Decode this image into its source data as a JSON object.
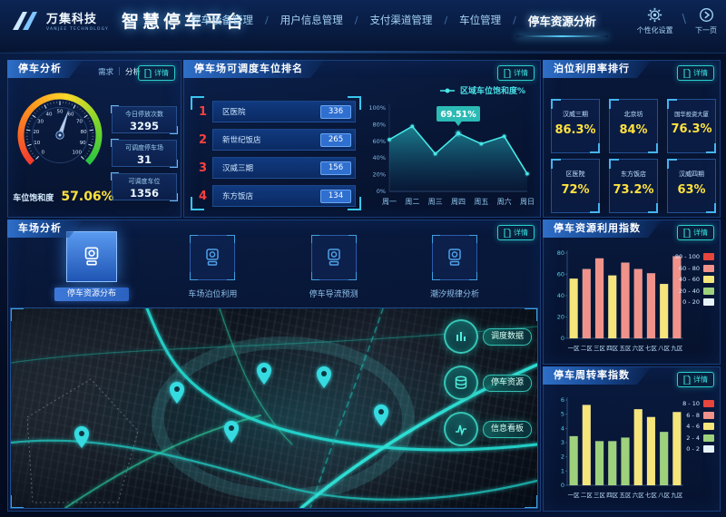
{
  "header": {
    "logo_title": "万集科技",
    "logo_subtitle": "VANJEE TECHNOLOGY",
    "app_title": "智慧停车平台",
    "nav_items": [
      {
        "label": "停车设备管理"
      },
      {
        "label": "用户信息管理"
      },
      {
        "label": "支付渠道管理"
      },
      {
        "label": "车位管理"
      },
      {
        "label": "停车资源分析"
      }
    ],
    "actions": {
      "settings_label": "个性化设置",
      "next_label": "下一页"
    }
  },
  "separators": {
    "nav": "/",
    "actions": "\\",
    "toggle": "|"
  },
  "detail_button_label": "详情",
  "parking_analysis": {
    "title": "停车分析",
    "toggle": {
      "left": "需求",
      "right": "分析"
    },
    "gauge": {
      "min": 0,
      "max": 100,
      "value": 57.06,
      "caption": "车位饱和度",
      "value_text": "57.06%"
    },
    "stats": [
      {
        "label": "今日停放次数",
        "value": "3295"
      },
      {
        "label": "可调度停车场",
        "value": "31"
      },
      {
        "label": "可调度车位",
        "value": "1356"
      }
    ]
  },
  "dispatch_ranking": {
    "title": "停车场可调度车位排名",
    "items": [
      {
        "rank": "1",
        "name": "区医院",
        "value": "336"
      },
      {
        "rank": "2",
        "name": "新世纪饭店",
        "value": "265"
      },
      {
        "rank": "3",
        "name": "汉威三期",
        "value": "156"
      },
      {
        "rank": "4",
        "name": "东方饭店",
        "value": "134"
      }
    ]
  },
  "berth_ranking": {
    "title": "泊位利用率排行",
    "cards": [
      {
        "name": "汉威三期",
        "value": "86.3%"
      },
      {
        "name": "北京坊",
        "value": "84%"
      },
      {
        "name": "国华投资大厦",
        "value": "76.3%"
      },
      {
        "name": "区医院",
        "value": "72%"
      },
      {
        "name": "东方饭店",
        "value": "73.2%"
      },
      {
        "name": "汉威四期",
        "value": "63%"
      }
    ]
  },
  "lot_analysis": {
    "title": "车场分析",
    "tabs": [
      {
        "label": "停车资源分布",
        "active": true
      },
      {
        "label": "车场泊位利用",
        "active": false
      },
      {
        "label": "停车导流预测",
        "active": false
      },
      {
        "label": "潮汐规律分析",
        "active": false
      }
    ],
    "map_buttons": [
      {
        "label": "调度数据",
        "icon": "bar-chart-icon"
      },
      {
        "label": "停车资源",
        "icon": "database-icon"
      },
      {
        "label": "信息看板",
        "icon": "pulse-chart-icon"
      }
    ]
  },
  "chart_data": [
    {
      "id": "region_saturation",
      "type": "area",
      "legend_label": "区域车位饱和度%",
      "x": [
        "周一",
        "周二",
        "周三",
        "周四",
        "周五",
        "周六",
        "周日"
      ],
      "values": [
        62,
        78,
        45,
        69.51,
        57,
        66,
        21
      ],
      "ylim": [
        0,
        100
      ],
      "yticks": [
        "0%",
        "20%",
        "40%",
        "60%",
        "80%",
        "100%"
      ],
      "highlight_index": 3,
      "highlight_label": "69.51%",
      "line_color": "#46e8e8",
      "legend_position": "top-right"
    },
    {
      "id": "resource_utilization_index",
      "type": "bar",
      "title": "停车资源利用指数",
      "categories": [
        "一区",
        "二区",
        "三区",
        "四区",
        "五区",
        "六区",
        "七区",
        "八区",
        "九区"
      ],
      "values": [
        56,
        65,
        75,
        59,
        71,
        65,
        61,
        51,
        77
      ],
      "colors": [
        "#f5e57a",
        "#f0928a",
        "#f0928a",
        "#f5e57a",
        "#f0928a",
        "#f0928a",
        "#f0928a",
        "#f5e57a",
        "#f0928a"
      ],
      "ylim": [
        0,
        80
      ],
      "ytick_step": 20,
      "legend": [
        {
          "label": "80 - 100",
          "color": "#e8453c"
        },
        {
          "label": "60 - 80",
          "color": "#f0928a"
        },
        {
          "label": "40 - 60",
          "color": "#f5e57a"
        },
        {
          "label": "20 - 40",
          "color": "#9ed17b"
        },
        {
          "label": "0 - 20",
          "color": "#e6f2fa"
        }
      ],
      "legend_position": "right"
    },
    {
      "id": "turnover_index",
      "type": "bar",
      "title": "停车周转率指数",
      "categories": [
        "一区",
        "二区",
        "三区",
        "四区",
        "五区",
        "六区",
        "七区",
        "八区",
        "九区"
      ],
      "values": [
        3.45,
        5.65,
        3.1,
        3.1,
        3.35,
        5.35,
        4.8,
        3.75,
        5.15
      ],
      "colors": [
        "#9ed17b",
        "#f5e57a",
        "#9ed17b",
        "#9ed17b",
        "#9ed17b",
        "#f5e57a",
        "#f5e57a",
        "#9ed17b",
        "#f5e57a"
      ],
      "ylim": [
        0,
        6
      ],
      "ytick_step": 1,
      "legend": [
        {
          "label": "8 - 10",
          "color": "#e8453c"
        },
        {
          "label": "6 - 8",
          "color": "#f0928a"
        },
        {
          "label": "4 - 6",
          "color": "#f5e57a"
        },
        {
          "label": "2 - 4",
          "color": "#9ed17b"
        },
        {
          "label": "0 - 2",
          "color": "#e6f2fa"
        }
      ],
      "legend_position": "right"
    }
  ]
}
